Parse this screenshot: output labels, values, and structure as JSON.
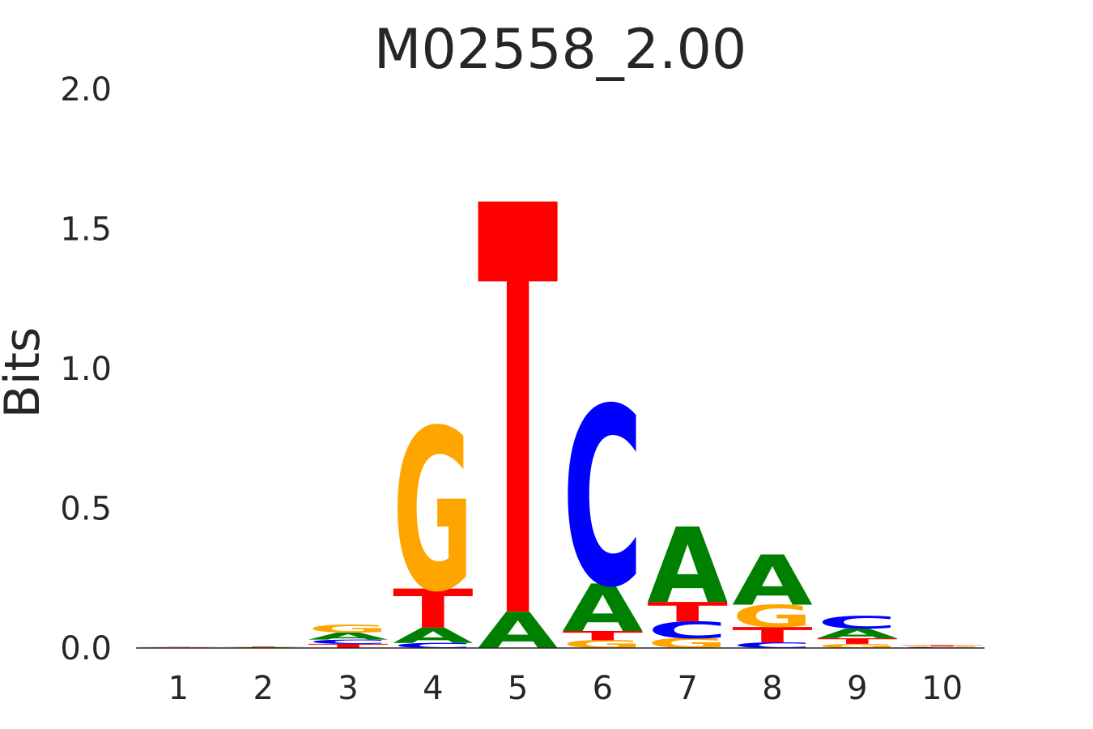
{
  "chart_data": {
    "type": "sequence-logo",
    "title": "M02558_2.00",
    "xlabel": "",
    "ylabel": "Bits",
    "ylim": [
      0,
      2
    ],
    "yticks": [
      "0.0",
      "0.5",
      "1.0",
      "1.5",
      "2.0"
    ],
    "ytick_values": [
      0,
      0.5,
      1.0,
      1.5,
      2.0
    ],
    "categories": [
      "1",
      "2",
      "3",
      "4",
      "5",
      "6",
      "7",
      "8",
      "9",
      "10"
    ],
    "colors": {
      "A": "#008000",
      "C": "#0000ff",
      "G": "#ffa500",
      "T": "#ff0000"
    },
    "positions": [
      {
        "pos": "1",
        "letters": [
          {
            "base": "A",
            "bits": 0.001
          },
          {
            "base": "C",
            "bits": 0.001
          },
          {
            "base": "G",
            "bits": 0.001
          },
          {
            "base": "T",
            "bits": 0.001
          }
        ]
      },
      {
        "pos": "2",
        "letters": [
          {
            "base": "C",
            "bits": 0.001
          },
          {
            "base": "A",
            "bits": 0.002
          },
          {
            "base": "T",
            "bits": 0.002
          },
          {
            "base": "G",
            "bits": 0.002
          }
        ]
      },
      {
        "pos": "3",
        "letters": [
          {
            "base": "T",
            "bits": 0.015
          },
          {
            "base": "C",
            "bits": 0.015
          },
          {
            "base": "A",
            "bits": 0.025
          },
          {
            "base": "G",
            "bits": 0.028
          }
        ]
      },
      {
        "pos": "4",
        "letters": [
          {
            "base": "C",
            "bits": 0.018
          },
          {
            "base": "A",
            "bits": 0.055
          },
          {
            "base": "T",
            "bits": 0.14
          },
          {
            "base": "G",
            "bits": 0.58
          }
        ]
      },
      {
        "pos": "5",
        "letters": [
          {
            "base": "A",
            "bits": 0.13
          },
          {
            "base": "T",
            "bits": 1.47
          }
        ]
      },
      {
        "pos": "6",
        "letters": [
          {
            "base": "G",
            "bits": 0.028
          },
          {
            "base": "T",
            "bits": 0.033
          },
          {
            "base": "A",
            "bits": 0.17
          },
          {
            "base": "C",
            "bits": 0.64
          }
        ]
      },
      {
        "pos": "7",
        "letters": [
          {
            "base": "G",
            "bits": 0.035
          },
          {
            "base": "C",
            "bits": 0.06
          },
          {
            "base": "T",
            "bits": 0.07
          },
          {
            "base": "A",
            "bits": 0.27
          }
        ]
      },
      {
        "pos": "8",
        "letters": [
          {
            "base": "C",
            "bits": 0.02
          },
          {
            "base": "T",
            "bits": 0.055
          },
          {
            "base": "G",
            "bits": 0.08
          },
          {
            "base": "A",
            "bits": 0.18
          }
        ]
      },
      {
        "pos": "9",
        "letters": [
          {
            "base": "G",
            "bits": 0.015
          },
          {
            "base": "T",
            "bits": 0.02
          },
          {
            "base": "A",
            "bits": 0.035
          },
          {
            "base": "C",
            "bits": 0.045
          }
        ]
      },
      {
        "pos": "10",
        "letters": [
          {
            "base": "A",
            "bits": 0.001
          },
          {
            "base": "C",
            "bits": 0.002
          },
          {
            "base": "G",
            "bits": 0.003
          },
          {
            "base": "T",
            "bits": 0.004
          }
        ]
      }
    ]
  }
}
